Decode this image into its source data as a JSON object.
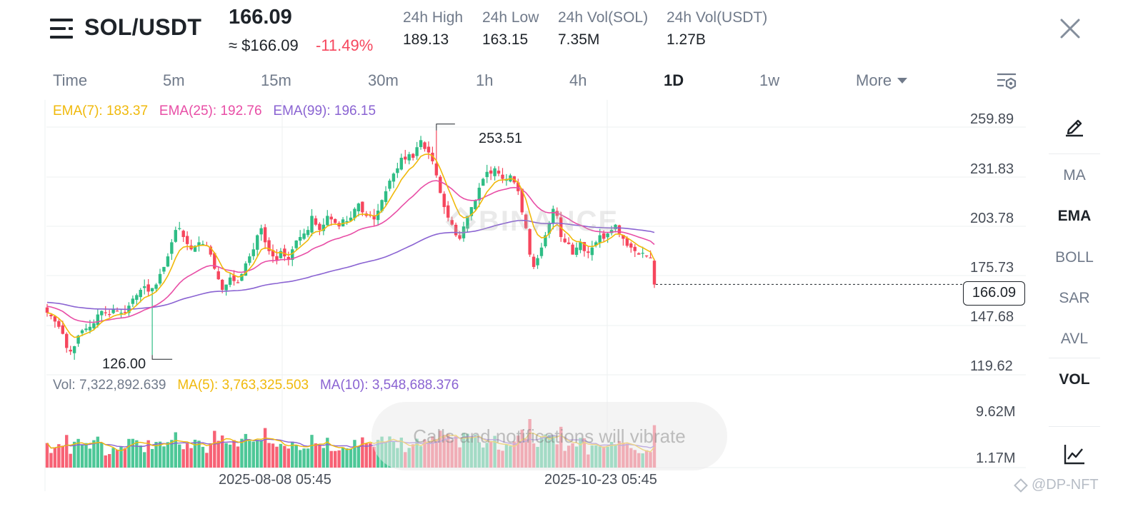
{
  "header": {
    "pair": "SOL/USDT",
    "last_price": "166.09",
    "approx_usd": "≈ $166.09",
    "change_pct": "-11.49%",
    "stats": [
      {
        "label": "24h High",
        "value": "189.13"
      },
      {
        "label": "24h Low",
        "value": "163.15"
      },
      {
        "label": "24h Vol(SOL)",
        "value": "7.35M"
      },
      {
        "label": "24h Vol(USDT)",
        "value": "1.27B"
      }
    ]
  },
  "tabs": {
    "items": [
      "Time",
      "5m",
      "15m",
      "30m",
      "1h",
      "4h",
      "1D",
      "1w"
    ],
    "active": "1D",
    "more_label": "More"
  },
  "legend": {
    "ema7": "EMA(7): 183.37",
    "ema25": "EMA(25): 192.76",
    "ema99": "EMA(99): 196.15",
    "vol": "Vol: 7,322,892.639",
    "ma5": "MA(5): 3,763,325.503",
    "ma10": "MA(10): 3,548,688.376"
  },
  "price_axis": [
    "259.89",
    "231.83",
    "203.78",
    "175.73",
    "147.68",
    "119.62"
  ],
  "volume_axis": [
    "9.62M",
    "1.17M"
  ],
  "current_price_tag": "166.09",
  "annotations": {
    "high": "253.51",
    "low": "126.00"
  },
  "dates": [
    "2025-08-08 05:45",
    "2025-10-23 05:45"
  ],
  "watermark": "BINANCE",
  "toast": "Calls and notifications will vibrate",
  "right_panel": {
    "items": [
      "MA",
      "EMA",
      "BOLL",
      "SAR",
      "AVL",
      "VOL"
    ],
    "active": [
      "EMA",
      "VOL"
    ]
  },
  "credit": "@DP-NFT",
  "colors": {
    "up": "#2ebd85",
    "down": "#f6465d",
    "ema7": "#f0b90b",
    "ema25": "#e84ea6",
    "ema99": "#8a63d2",
    "text_secondary": "#707a8a"
  },
  "chart_data": {
    "type": "candlestick",
    "interval": "1D",
    "price_range": [
      119.62,
      259.89
    ],
    "closes": [
      150,
      148,
      145,
      142,
      138,
      130,
      128,
      131,
      137,
      140,
      141,
      142,
      144,
      149,
      151,
      150,
      149,
      152,
      151,
      150,
      150,
      154,
      158,
      160,
      163,
      165,
      162,
      164,
      166,
      172,
      176,
      182,
      190,
      197,
      198,
      193,
      189,
      186,
      188,
      190,
      189,
      188,
      183,
      175,
      169,
      163,
      166,
      170,
      168,
      167,
      172,
      178,
      182,
      186,
      194,
      198,
      190,
      185,
      182,
      180,
      185,
      182,
      180,
      186,
      191,
      193,
      195,
      197,
      205,
      200,
      197,
      200,
      205,
      203,
      201,
      199,
      203,
      202,
      204,
      209,
      212,
      207,
      205,
      205,
      203,
      208,
      214,
      219,
      225,
      229,
      232,
      238,
      237,
      240,
      238,
      244,
      248,
      243,
      241,
      236,
      228,
      218,
      210,
      204,
      200,
      194,
      192,
      199,
      205,
      210,
      214,
      221,
      226,
      230,
      229,
      232,
      229,
      226,
      226,
      228,
      224,
      219,
      207,
      198,
      183,
      176,
      181,
      187,
      194,
      201,
      209,
      205,
      193,
      190,
      189,
      183,
      187,
      190,
      185,
      184,
      187,
      190,
      194,
      192,
      195,
      197,
      200,
      195,
      192,
      188,
      187,
      185,
      183,
      184,
      182,
      181,
      166
    ],
    "ema7_end": 183.37,
    "ema25_end": 192.76,
    "ema99_end": 196.15,
    "period_high": 253.51,
    "period_low": 126.0,
    "last_price": 166.09,
    "volume_range": [
      1.17,
      9.62
    ],
    "volume_unit": "M",
    "x_ticks": [
      "2025-08-08 05:45",
      "2025-10-23 05:45"
    ]
  }
}
